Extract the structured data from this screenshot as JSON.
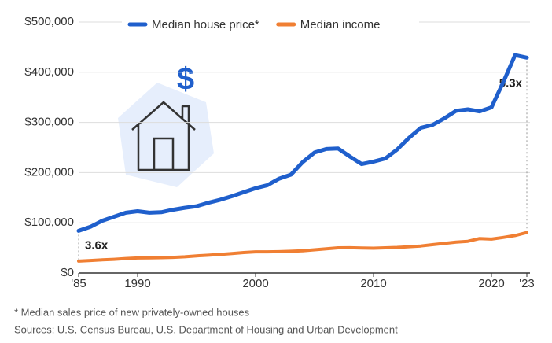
{
  "chart_data": {
    "type": "line",
    "x": [
      1985,
      1986,
      1987,
      1988,
      1989,
      1990,
      1991,
      1992,
      1993,
      1994,
      1995,
      1996,
      1997,
      1998,
      1999,
      2000,
      2001,
      2002,
      2003,
      2004,
      2005,
      2006,
      2007,
      2008,
      2009,
      2010,
      2011,
      2012,
      2013,
      2014,
      2015,
      2016,
      2017,
      2018,
      2019,
      2020,
      2021,
      2022,
      2023
    ],
    "series": [
      {
        "name": "Median house price*",
        "color": "#1f5fcc",
        "values": [
          84000,
          92000,
          104000,
          112000,
          120000,
          123000,
          120000,
          121000,
          126000,
          130000,
          133000,
          140000,
          146000,
          153000,
          161000,
          169000,
          175000,
          188000,
          196000,
          221000,
          240000,
          247000,
          248000,
          232000,
          217000,
          222000,
          228000,
          246000,
          269000,
          289000,
          295000,
          308000,
          323000,
          326000,
          322000,
          330000,
          380000,
          434000,
          429000
        ]
      },
      {
        "name": "Median income",
        "color": "#f07f33",
        "values": [
          23600,
          24900,
          26100,
          27200,
          28900,
          29900,
          30100,
          30600,
          31200,
          32300,
          34100,
          35500,
          37000,
          38900,
          40700,
          42100,
          42200,
          42400,
          43300,
          44300,
          46300,
          48200,
          50200,
          50300,
          49800,
          49400,
          50100,
          51000,
          52300,
          53700,
          56500,
          59000,
          61400,
          63200,
          68700,
          67500,
          70800,
          74600,
          80600
        ]
      }
    ],
    "xlim": [
      1985,
      2023
    ],
    "xticks": [
      {
        "value": 1985,
        "label": "'85"
      },
      1990,
      2000,
      2010,
      2020,
      {
        "value": 2023,
        "label": "'23"
      }
    ],
    "ylim": [
      0,
      500000
    ],
    "yticks": [
      {
        "value": 0,
        "label": "$0"
      },
      {
        "value": 100000,
        "label": "$100,000"
      },
      {
        "value": 200000,
        "label": "$200,000"
      },
      {
        "value": 300000,
        "label": "$300,000"
      },
      {
        "value": 400000,
        "label": "$400,000"
      },
      {
        "value": 500000,
        "label": "$500,000"
      }
    ],
    "grid": true,
    "legend": "top",
    "annotations": [
      "3.6x",
      "5.3x"
    ],
    "footnote": "* Median sales price of new privately-owned houses",
    "source": "Sources: U.S. Census Bureau, U.S. Department of Housing and Urban Development"
  }
}
